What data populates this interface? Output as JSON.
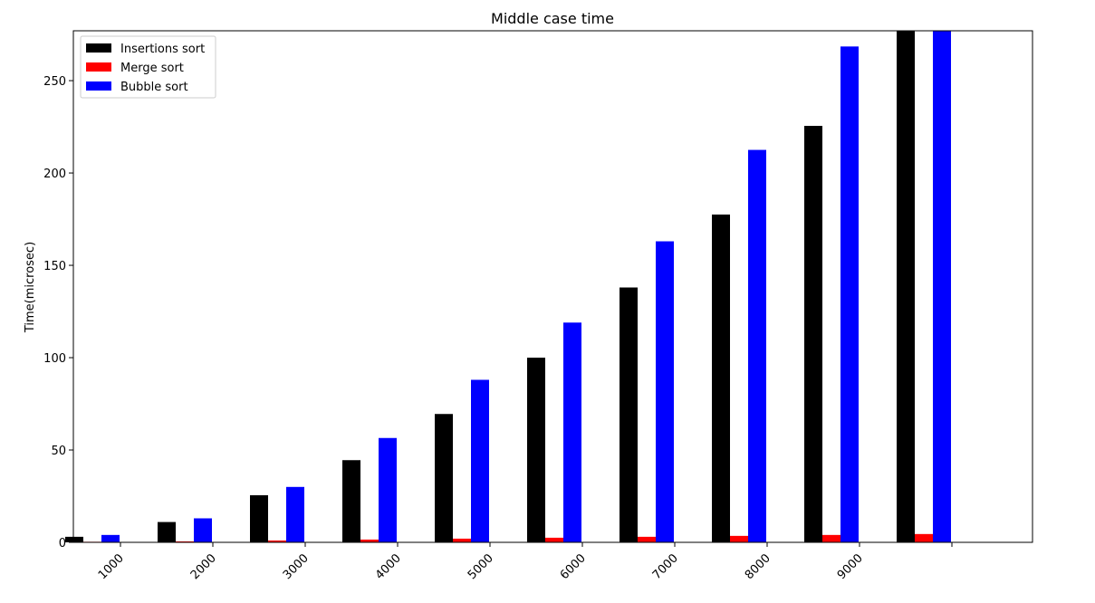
{
  "chart_data": {
    "type": "bar",
    "title": "Middle case time",
    "xlabel": "",
    "ylabel": "Time(microsec)",
    "categories": [
      "1000",
      "2000",
      "3000",
      "4000",
      "5000",
      "6000",
      "7000",
      "8000",
      "9000",
      ""
    ],
    "series": [
      {
        "name": "Insertions sort",
        "color": "#000000",
        "values": [
          3,
          11,
          25.5,
          44.5,
          69.5,
          100,
          138,
          177.5,
          225.5,
          277
        ]
      },
      {
        "name": "Merge sort",
        "color": "#ff0000",
        "values": [
          0.3,
          0.5,
          1,
          1.5,
          2,
          2.5,
          3,
          3.5,
          4,
          4.5
        ]
      },
      {
        "name": "Bubble sort",
        "color": "#0000ff",
        "values": [
          4,
          13,
          30,
          56.5,
          88,
          119,
          163,
          212.5,
          268.5,
          277
        ]
      }
    ],
    "ylim": [
      0,
      277
    ],
    "yticks": [
      0,
      50,
      100,
      150,
      200,
      250
    ],
    "grid": false,
    "legend_position": "top-left"
  }
}
